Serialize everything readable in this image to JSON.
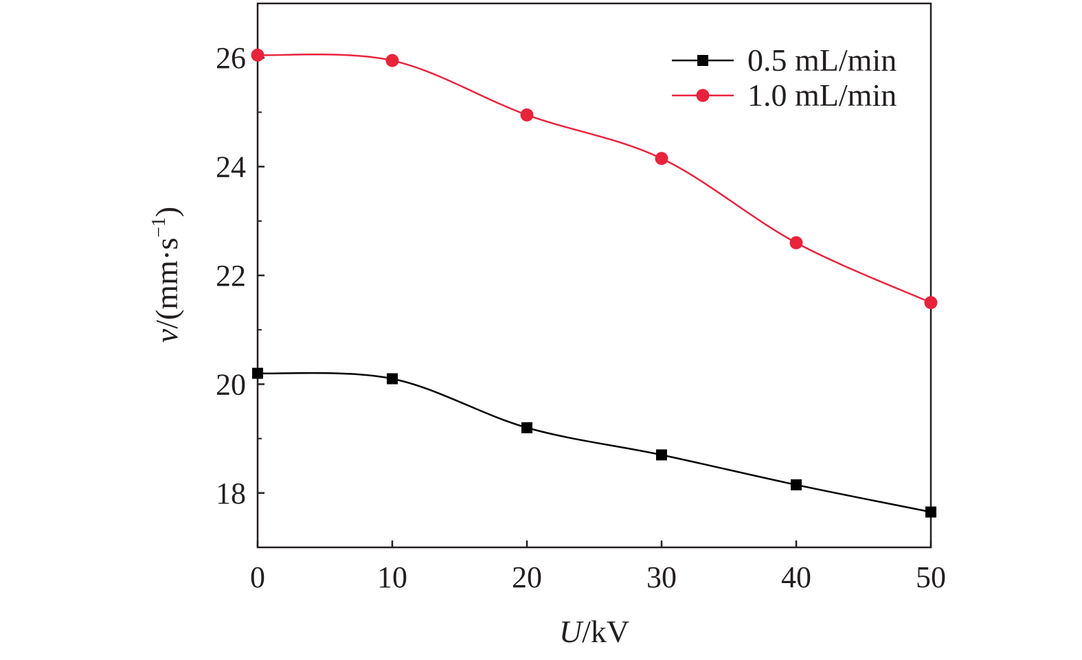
{
  "chart_data": {
    "type": "line",
    "xlabel": {
      "var": "U",
      "unit": "/kV"
    },
    "ylabel": {
      "var": "v",
      "unit": "/(mm·s",
      "exp": "−1",
      "close": ")"
    },
    "xlim": [
      0,
      50
    ],
    "ylim": [
      17,
      27
    ],
    "xticks": [
      0,
      10,
      20,
      30,
      40,
      50
    ],
    "yticks": [
      18,
      20,
      22,
      24,
      26
    ],
    "grid": false,
    "legend_position": "top-right",
    "x": [
      0,
      10,
      20,
      30,
      40,
      50
    ],
    "series": [
      {
        "name": "0.5 mL/min",
        "color": "#000000",
        "marker": "square",
        "values": [
          20.2,
          20.1,
          19.2,
          18.7,
          18.15,
          17.65
        ]
      },
      {
        "name": "1.0 mL/min",
        "color": "#e8233c",
        "marker": "circle",
        "values": [
          26.05,
          25.95,
          24.95,
          24.15,
          22.6,
          21.5
        ]
      }
    ]
  }
}
